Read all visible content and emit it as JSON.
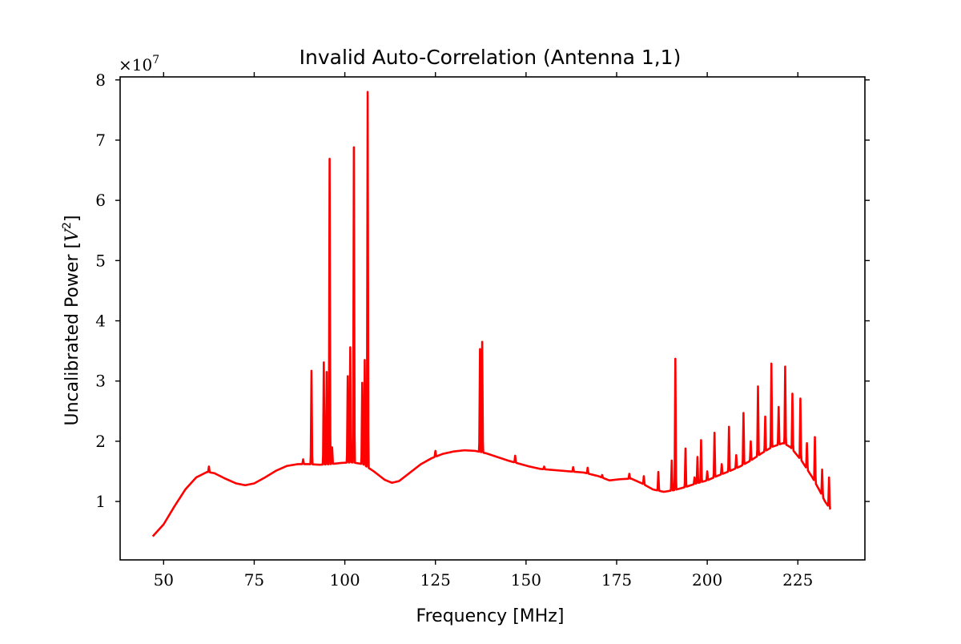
{
  "chart_data": {
    "type": "line",
    "title": "Invalid Auto-Correlation (Antenna 1,1)",
    "xlabel": "Frequency [MHz]",
    "ylabel": "Uncalibrated Power [",
    "ylabel_var": "V",
    "ylabel_exp": "2",
    "ylabel_close": "]",
    "offset_text": "×10",
    "offset_exp": "7",
    "y_scale": 10000000,
    "xlim": [
      38,
      243.5
    ],
    "ylim": [
      0.03,
      8.05
    ],
    "xticks": [
      50,
      75,
      100,
      125,
      150,
      175,
      200,
      225
    ],
    "yticks": [
      1,
      2,
      3,
      4,
      5,
      6,
      7,
      8
    ],
    "grid": false,
    "series": [
      {
        "color": "#ff0000",
        "baseline": [
          [
            47,
            0.42
          ],
          [
            50,
            0.62
          ],
          [
            53,
            0.92
          ],
          [
            56,
            1.2
          ],
          [
            59,
            1.4
          ],
          [
            62,
            1.49
          ],
          [
            64,
            1.47
          ],
          [
            67,
            1.38
          ],
          [
            70,
            1.3
          ],
          [
            72.5,
            1.27
          ],
          [
            75,
            1.3
          ],
          [
            78,
            1.4
          ],
          [
            81,
            1.51
          ],
          [
            84,
            1.59
          ],
          [
            87,
            1.62
          ],
          [
            90,
            1.62
          ],
          [
            93,
            1.61
          ],
          [
            96,
            1.62
          ],
          [
            99,
            1.64
          ],
          [
            102,
            1.65
          ],
          [
            105,
            1.62
          ],
          [
            108,
            1.5
          ],
          [
            111,
            1.36
          ],
          [
            113,
            1.31
          ],
          [
            115,
            1.34
          ],
          [
            118,
            1.48
          ],
          [
            121,
            1.62
          ],
          [
            124,
            1.72
          ],
          [
            127,
            1.79
          ],
          [
            130,
            1.83
          ],
          [
            133,
            1.85
          ],
          [
            136,
            1.84
          ],
          [
            139,
            1.8
          ],
          [
            142,
            1.74
          ],
          [
            145,
            1.68
          ],
          [
            148,
            1.63
          ],
          [
            151,
            1.58
          ],
          [
            154,
            1.54
          ],
          [
            158,
            1.52
          ],
          [
            162,
            1.5
          ],
          [
            166,
            1.48
          ],
          [
            170,
            1.42
          ],
          [
            173,
            1.35
          ],
          [
            176,
            1.37
          ],
          [
            179,
            1.38
          ],
          [
            182,
            1.3
          ],
          [
            185,
            1.2
          ],
          [
            188,
            1.16
          ],
          [
            191,
            1.19
          ],
          [
            194,
            1.24
          ],
          [
            197,
            1.3
          ],
          [
            200,
            1.35
          ],
          [
            203,
            1.43
          ],
          [
            206,
            1.5
          ],
          [
            209,
            1.58
          ],
          [
            212,
            1.68
          ],
          [
            215,
            1.8
          ],
          [
            218,
            1.91
          ],
          [
            221,
            1.97
          ],
          [
            223,
            1.9
          ],
          [
            226,
            1.68
          ],
          [
            229,
            1.4
          ],
          [
            231,
            1.18
          ],
          [
            232.5,
            1.0
          ],
          [
            234,
            0.87
          ]
        ],
        "peaks": [
          [
            62.5,
            1.58
          ],
          [
            88.5,
            1.7
          ],
          [
            90.8,
            3.17
          ],
          [
            94.2,
            3.31
          ],
          [
            95.0,
            3.15
          ],
          [
            95.8,
            6.69
          ],
          [
            96.5,
            1.9
          ],
          [
            100.8,
            3.08
          ],
          [
            101.5,
            3.56
          ],
          [
            102.5,
            6.88
          ],
          [
            104.8,
            2.97
          ],
          [
            105.5,
            3.35
          ],
          [
            106.3,
            7.8
          ],
          [
            125,
            1.84
          ],
          [
            137.3,
            3.53
          ],
          [
            137.9,
            3.65
          ],
          [
            147,
            1.76
          ],
          [
            155,
            1.58
          ],
          [
            163,
            1.57
          ],
          [
            167,
            1.56
          ],
          [
            171,
            1.44
          ],
          [
            178.5,
            1.46
          ],
          [
            182.5,
            1.42
          ],
          [
            186.5,
            1.49
          ],
          [
            190.2,
            1.68
          ],
          [
            191.2,
            3.37
          ],
          [
            194,
            1.88
          ],
          [
            196.5,
            1.4
          ],
          [
            197.3,
            1.74
          ],
          [
            198.3,
            2.02
          ],
          [
            200,
            1.5
          ],
          [
            202,
            2.14
          ],
          [
            204,
            1.62
          ],
          [
            206,
            2.24
          ],
          [
            208,
            1.77
          ],
          [
            210,
            2.47
          ],
          [
            212,
            2.0
          ],
          [
            214,
            2.91
          ],
          [
            216,
            2.41
          ],
          [
            217.7,
            3.29
          ],
          [
            219.7,
            2.57
          ],
          [
            221.5,
            3.24
          ],
          [
            223.5,
            2.79
          ],
          [
            225.7,
            2.71
          ],
          [
            227.5,
            1.97
          ],
          [
            229.7,
            2.07
          ],
          [
            231.7,
            1.53
          ],
          [
            233.6,
            1.4
          ]
        ]
      }
    ]
  }
}
